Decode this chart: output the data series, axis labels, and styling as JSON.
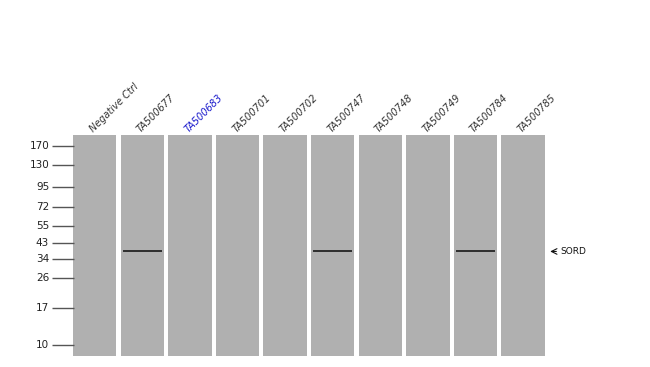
{
  "fig_bg": "#ffffff",
  "gel_bg": "#b8b8b8",
  "lane_color": "#b0b0b0",
  "band_color": "#2a2a2a",
  "gap_color": "#ffffff",
  "marker_bg": "#ffffff",
  "lane_labels": [
    "Negative Ctrl",
    "TA500677",
    "TA500683",
    "TA500701",
    "TA500702",
    "TA500747",
    "TA500748",
    "TA500749",
    "TA500784",
    "TA500785"
  ],
  "label_colors": [
    "#333333",
    "#333333",
    "#1a1acc",
    "#333333",
    "#333333",
    "#333333",
    "#333333",
    "#333333",
    "#333333",
    "#333333"
  ],
  "mw_markers": [
    170,
    130,
    95,
    72,
    55,
    43,
    34,
    26,
    17,
    10
  ],
  "band_lanes": [
    1,
    5,
    8
  ],
  "band_mw": 38,
  "sord_color": "#111111",
  "label_fontsize": 7.0,
  "mw_fontsize": 7.5
}
